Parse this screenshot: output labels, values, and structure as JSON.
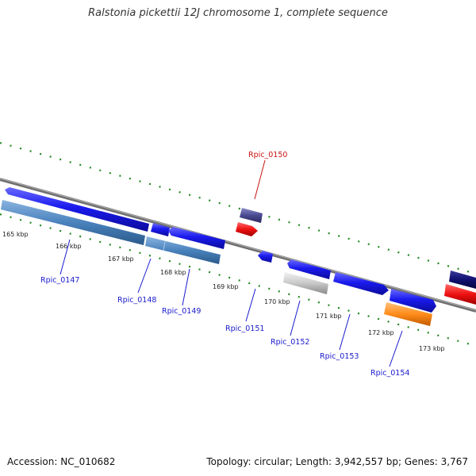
{
  "title": "Ralstonia pickettii 12J chromosome 1, complete sequence",
  "footer": {
    "accession": "Accession: NC_010682",
    "topology": "Topology: circular; Length: 3,942,557 bp; Genes: 3,767"
  },
  "colors": {
    "cds": "#1a1aee",
    "cds_dark_navy": "#101070",
    "rrna_steelblue": "#4a82bd",
    "trna_red": "#ee1111",
    "misc_purple": "#4a4a92",
    "misc_gray": "#c8c8c8",
    "misc_orange": "#ff8c1a",
    "backbone": "#808080",
    "tick_green": "#228822",
    "label_blue": "#1a1acc",
    "label_red": "#cc1111"
  },
  "kbp_ticks": [
    "165 kbp",
    "166 kbp",
    "167 kbp",
    "168 kbp",
    "169 kbp",
    "170 kbp",
    "171 kbp",
    "172 kbp",
    "173 kbp"
  ],
  "gene_labels": [
    {
      "text": "Rpic_0147",
      "color": "blue"
    },
    {
      "text": "Rpic_0148",
      "color": "blue"
    },
    {
      "text": "Rpic_0149",
      "color": "blue"
    },
    {
      "text": "Rpic_0150",
      "color": "red"
    },
    {
      "text": "Rpic_0151",
      "color": "blue"
    },
    {
      "text": "Rpic_0152",
      "color": "blue"
    },
    {
      "text": "Rpic_0153",
      "color": "blue"
    },
    {
      "text": "Rpic_0154",
      "color": "blue"
    }
  ]
}
